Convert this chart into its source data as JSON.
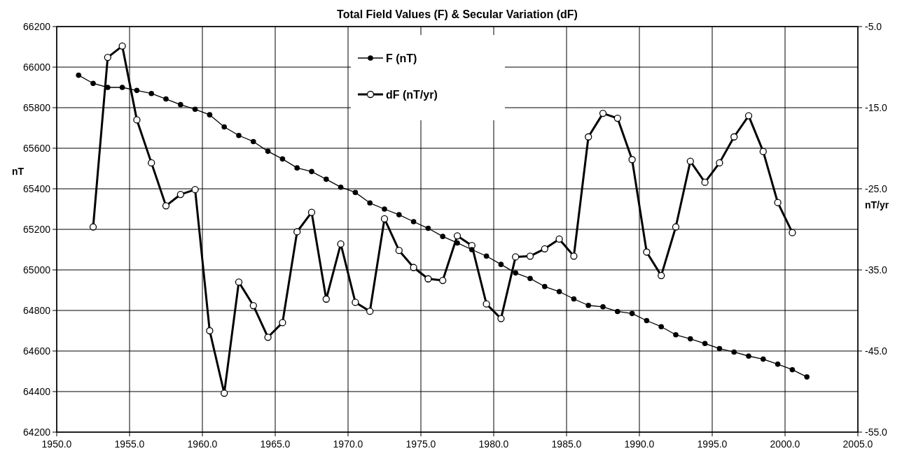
{
  "chart_data": {
    "type": "line",
    "title": "Total Field Values (F) & Secular Variation (dF)",
    "ylabel": "nT",
    "y2label": "nT/yr",
    "xlim": [
      1950,
      2005
    ],
    "xticks": [
      {
        "value": 1950,
        "label": "1950.0"
      },
      {
        "value": 1955,
        "label": "1955.0"
      },
      {
        "value": 1960,
        "label": "1960.0"
      },
      {
        "value": 1965,
        "label": "1965.0"
      },
      {
        "value": 1970,
        "label": "1970.0"
      },
      {
        "value": 1975,
        "label": "1975.0"
      },
      {
        "value": 1980,
        "label": "1980.0"
      },
      {
        "value": 1985,
        "label": "1985.0"
      },
      {
        "value": 1990,
        "label": "1990.0"
      },
      {
        "value": 1995,
        "label": "1995.0"
      },
      {
        "value": 2000,
        "label": "2000.0"
      },
      {
        "value": 2005,
        "label": "2005.0"
      }
    ],
    "ylim": [
      64200,
      66200
    ],
    "yticks": [
      64200,
      64400,
      64600,
      64800,
      65000,
      65200,
      65400,
      65600,
      65800,
      66000,
      66200
    ],
    "y2lim": [
      -55,
      -5
    ],
    "y2ticks": [
      {
        "value": -55,
        "label": "-55.0"
      },
      {
        "value": -45,
        "label": "-45.0"
      },
      {
        "value": -35,
        "label": "-35.0"
      },
      {
        "value": -25,
        "label": "-25.0"
      },
      {
        "value": -15,
        "label": "-15.0"
      },
      {
        "value": -5,
        "label": "-5.0"
      }
    ],
    "grid": true,
    "legend": "top",
    "series": [
      {
        "name": "F (nT)",
        "color": "#000000",
        "marker": "circle",
        "x": [
          1951.5,
          1952.5,
          1953.5,
          1954.5,
          1955.5,
          1956.5,
          1957.5,
          1958.5,
          1959.5,
          1960.5,
          1961.5,
          1962.5,
          1963.5,
          1964.5,
          1965.5,
          1966.5,
          1967.5,
          1968.5,
          1969.5,
          1970.5,
          1971.5,
          1972.5,
          1973.5,
          1974.5,
          1975.5,
          1976.5,
          1977.5,
          1978.5,
          1979.5,
          1980.5,
          1981.5,
          1982.5,
          1983.5,
          1984.5,
          1985.5,
          1986.5,
          1987.5,
          1988.5,
          1989.5,
          1990.5,
          1991.5,
          1992.5,
          1993.5,
          1994.5,
          1995.5,
          1996.5,
          1997.5,
          1998.5,
          1999.5,
          2000.5,
          2001.5
        ],
        "values": [
          65960,
          65920,
          65900,
          65900,
          65885,
          65870,
          65843,
          65815,
          65792,
          65765,
          65705,
          65663,
          65633,
          65585,
          65547,
          65503,
          65485,
          65447,
          65408,
          65382,
          65330,
          65300,
          65272,
          65238,
          65205,
          65165,
          65133,
          65100,
          65068,
          65027,
          64985,
          64958,
          64918,
          64893,
          64857,
          64825,
          64818,
          64795,
          64785,
          64750,
          64720,
          64680,
          64660,
          64637,
          64612,
          64595,
          64575,
          64560,
          64535,
          64508,
          64472
        ]
      },
      {
        "name": "dF (nT/yr)",
        "color": "#000000",
        "marker": "open-circle",
        "axis": "y2",
        "x": [
          1952.5,
          1953.5,
          1954.5,
          1955.5,
          1956.5,
          1957.5,
          1958.5,
          1959.5,
          1960.5,
          1961.5,
          1962.5,
          1963.5,
          1964.5,
          1965.5,
          1966.5,
          1967.5,
          1968.5,
          1969.5,
          1970.5,
          1971.5,
          1972.5,
          1973.5,
          1974.5,
          1975.5,
          1976.5,
          1977.5,
          1978.5,
          1979.5,
          1980.5,
          1981.5,
          1982.5,
          1983.5,
          1984.5,
          1985.5,
          1986.5,
          1987.5,
          1988.5,
          1989.5,
          1990.5,
          1991.5,
          1992.5,
          1993.5,
          1994.5,
          1995.5,
          1996.5,
          1997.5,
          1998.5,
          1999.5,
          2000.5
        ],
        "values": [
          -29.7,
          -8.8,
          -7.4,
          -16.5,
          -21.8,
          -27.1,
          -25.7,
          -25.1,
          -42.5,
          -50.2,
          -36.5,
          -39.4,
          -43.3,
          -41.5,
          -30.3,
          -27.9,
          -38.6,
          -31.8,
          -39.0,
          -40.1,
          -28.7,
          -32.6,
          -34.7,
          -36.1,
          -36.3,
          -30.8,
          -32.0,
          -39.2,
          -41.0,
          -33.4,
          -33.3,
          -32.4,
          -31.2,
          -33.3,
          -18.6,
          -15.7,
          -16.3,
          -21.4,
          -32.8,
          -35.7,
          -29.7,
          -21.6,
          -24.2,
          -21.8,
          -18.6,
          -16.0,
          -20.4,
          -26.7,
          -30.4
        ]
      }
    ]
  }
}
